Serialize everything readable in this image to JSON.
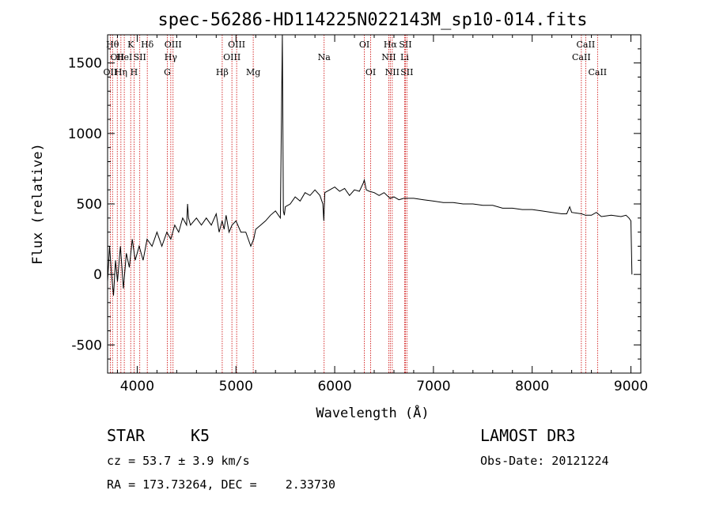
{
  "chart_data": {
    "type": "line",
    "title": "spec-56286-HD114225N022143M_sp10-014.fits",
    "xlabel": "Wavelength (Å)",
    "ylabel": "Flux (relative)",
    "xlim": [
      3700,
      9100
    ],
    "ylim": [
      -700,
      1700
    ],
    "xticks": [
      4000,
      5000,
      6000,
      7000,
      8000,
      9000
    ],
    "yticks": [
      -500,
      0,
      500,
      1000,
      1500
    ],
    "grid": false,
    "series": [
      {
        "x": [
          3700,
          3720,
          3740,
          3760,
          3780,
          3800,
          3830,
          3860,
          3890,
          3920,
          3950,
          3980,
          4020,
          4060,
          4100,
          4150,
          4200,
          4250,
          4300,
          4340,
          4380,
          4420,
          4460,
          4500,
          4510,
          4520,
          4540,
          4600,
          4650,
          4700,
          4750,
          4800,
          4830,
          4860,
          4880,
          4900,
          4930,
          4960,
          5000,
          5050,
          5100,
          5150,
          5180,
          5200,
          5250,
          5300,
          5350,
          5400,
          5450,
          5470,
          5480,
          5490,
          5500,
          5550,
          5600,
          5650,
          5700,
          5750,
          5800,
          5850,
          5880,
          5890,
          5900,
          5950,
          6000,
          6050,
          6100,
          6150,
          6200,
          6250,
          6290,
          6300,
          6320,
          6350,
          6400,
          6450,
          6500,
          6560,
          6600,
          6650,
          6700,
          6800,
          6900,
          7000,
          7100,
          7200,
          7300,
          7400,
          7500,
          7600,
          7700,
          7800,
          7900,
          8000,
          8100,
          8200,
          8300,
          8350,
          8380,
          8400,
          8500,
          8540,
          8600,
          8650,
          8700,
          8800,
          8900,
          8950,
          8980,
          9000,
          9010
        ],
        "y": [
          -50,
          200,
          0,
          -150,
          100,
          -50,
          200,
          -100,
          150,
          50,
          250,
          100,
          200,
          100,
          250,
          200,
          300,
          200,
          300,
          250,
          350,
          300,
          400,
          350,
          500,
          400,
          350,
          400,
          350,
          400,
          350,
          430,
          300,
          380,
          320,
          420,
          300,
          350,
          380,
          300,
          300,
          200,
          250,
          320,
          350,
          380,
          420,
          450,
          400,
          1700,
          450,
          420,
          480,
          500,
          550,
          520,
          580,
          560,
          600,
          560,
          500,
          380,
          580,
          600,
          620,
          590,
          610,
          560,
          600,
          590,
          650,
          670,
          600,
          590,
          580,
          560,
          580,
          540,
          550,
          530,
          540,
          540,
          530,
          520,
          510,
          510,
          500,
          500,
          490,
          490,
          470,
          470,
          460,
          460,
          450,
          440,
          430,
          430,
          480,
          440,
          430,
          420,
          420,
          440,
          410,
          420,
          410,
          420,
          400,
          380,
          0
        ]
      }
    ],
    "lines": [
      {
        "wl": 3727,
        "label": "OII",
        "row": 2
      },
      {
        "wl": 3750,
        "label": "Hθ",
        "row": 0
      },
      {
        "wl": 3798,
        "label": "OII",
        "row": 1
      },
      {
        "wl": 3835,
        "label": "Hη",
        "row": 2
      },
      {
        "wl": 3869,
        "label": "HeI",
        "row": 1
      },
      {
        "wl": 3934,
        "label": "K",
        "row": 0
      },
      {
        "wl": 3968,
        "label": "H",
        "row": 2
      },
      {
        "wl": 4026,
        "label": "SII",
        "row": 1
      },
      {
        "wl": 4102,
        "label": "Hδ",
        "row": 0
      },
      {
        "wl": 4305,
        "label": "G",
        "row": 2
      },
      {
        "wl": 4340,
        "label": "Hγ",
        "row": 1
      },
      {
        "wl": 4363,
        "label": "OIII",
        "row": 0
      },
      {
        "wl": 4861,
        "label": "Hβ",
        "row": 2
      },
      {
        "wl": 4959,
        "label": "OIII",
        "row": 1
      },
      {
        "wl": 5007,
        "label": "OIII",
        "row": 0
      },
      {
        "wl": 5175,
        "label": "Mg",
        "row": 2
      },
      {
        "wl": 5893,
        "label": "Na",
        "row": 1
      },
      {
        "wl": 6300,
        "label": "OI",
        "row": 0
      },
      {
        "wl": 6364,
        "label": "OI",
        "row": 2
      },
      {
        "wl": 6548,
        "label": "NII",
        "row": 1
      },
      {
        "wl": 6563,
        "label": "Hα",
        "row": 0
      },
      {
        "wl": 6583,
        "label": "NII",
        "row": 2
      },
      {
        "wl": 6708,
        "label": "Li",
        "row": 1
      },
      {
        "wl": 6716,
        "label": "SII",
        "row": 0
      },
      {
        "wl": 6731,
        "label": "SII",
        "row": 2
      },
      {
        "wl": 8498,
        "label": "CaII",
        "row": 1
      },
      {
        "wl": 8542,
        "label": "CaII",
        "row": 0
      },
      {
        "wl": 8662,
        "label": "CaII",
        "row": 2
      }
    ]
  },
  "info": {
    "class": "STAR",
    "subclass": "K5",
    "survey": "LAMOST DR3",
    "cz": "cz = 53.7 ± 3.9 km/s",
    "obsdate": "Obs-Date: 20121224",
    "radec": "RA = 173.73264, DEC =    2.33730"
  }
}
